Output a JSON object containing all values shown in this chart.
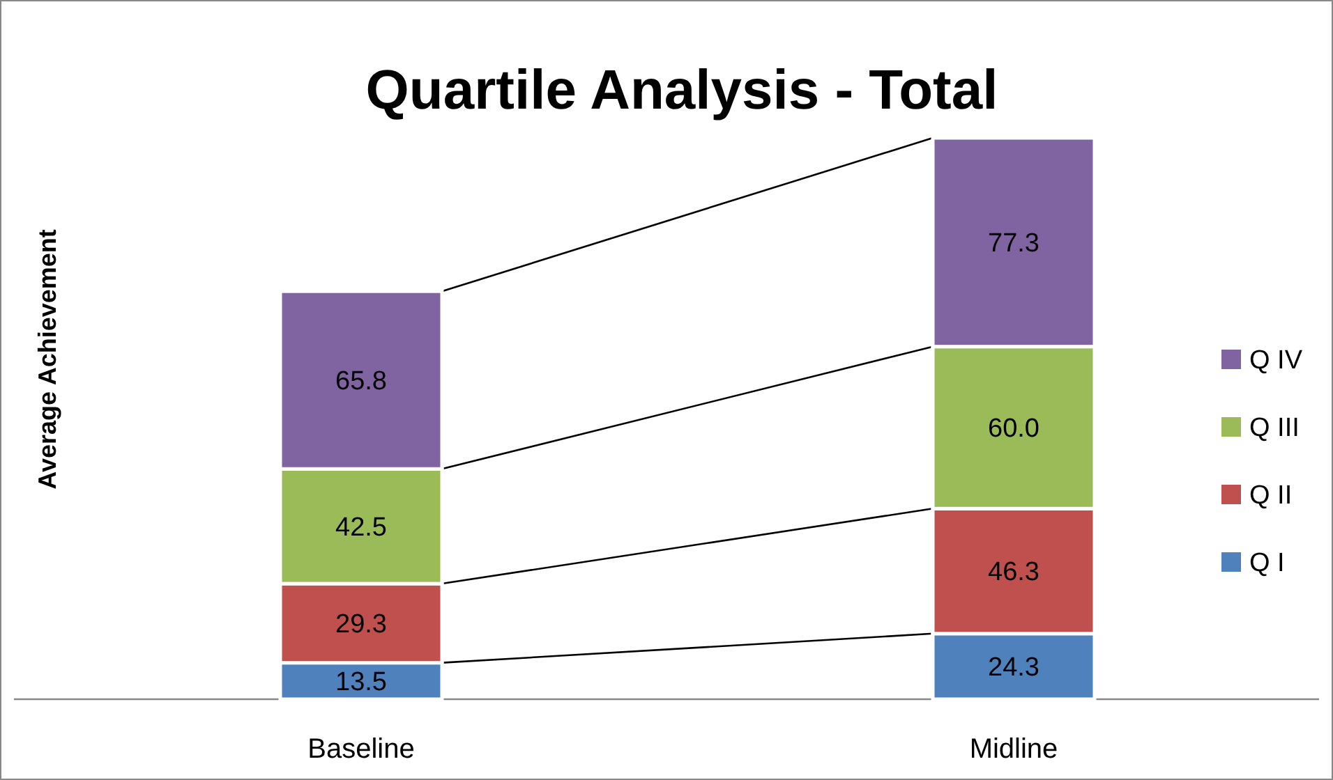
{
  "chart_data": {
    "type": "bar",
    "stacked": true,
    "title": "Quartile Analysis - Total",
    "ylabel": "Average Achievement",
    "categories": [
      "Baseline",
      "Midline"
    ],
    "series": [
      {
        "name": "Q I",
        "color": "#4f81bd",
        "values": [
          13.5,
          24.3
        ],
        "value_labels": [
          "13.5",
          "24.3"
        ]
      },
      {
        "name": "Q II",
        "color": "#c0504d",
        "values": [
          29.3,
          46.3
        ],
        "value_labels": [
          "29.3",
          "46.3"
        ]
      },
      {
        "name": "Q III",
        "color": "#9bbb59",
        "values": [
          42.5,
          60.0
        ],
        "value_labels": [
          "42.5",
          "60.0"
        ]
      },
      {
        "name": "Q IV",
        "color": "#8064a2",
        "values": [
          65.8,
          77.3
        ],
        "value_labels": [
          "65.8",
          "77.3"
        ]
      }
    ],
    "legend": "right"
  }
}
